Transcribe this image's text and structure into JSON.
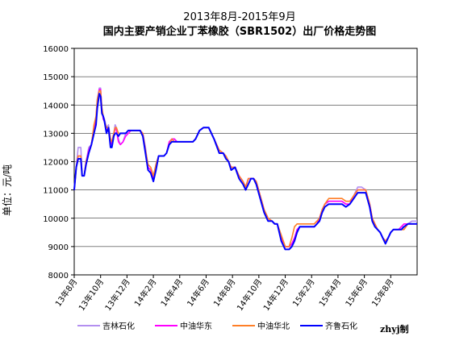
{
  "chart_data": {
    "type": "line",
    "title": "2013年8月-2015年9月",
    "subtitle": "国内主要产销企业丁苯橡胶（SBR1502）出厂价格走势图",
    "ylabel": "单位：元/吨",
    "xlabel": "",
    "ylim": [
      8000,
      16000
    ],
    "yticks": [
      8000,
      9000,
      10000,
      11000,
      12000,
      13000,
      14000,
      15000,
      16000
    ],
    "xlim": [
      0,
      26
    ],
    "xtick_labels": [
      "13年8月",
      "13年10月",
      "13年12月",
      "14年2月",
      "14年4月",
      "14年6月",
      "14年8月",
      "14年10月",
      "14年12月",
      "15年2月",
      "15年4月",
      "15年6月",
      "15年8月"
    ],
    "xtick_positions": [
      0,
      2,
      4,
      6,
      8,
      10,
      12,
      14,
      16,
      18,
      20,
      22,
      24
    ],
    "grid": "horizontal",
    "legend_position": "bottom",
    "credit": "zhyj制",
    "series": [
      {
        "name": "吉林石化",
        "color": "#b38ff0",
        "x": [
          0,
          0.15,
          0.3,
          0.5,
          0.6,
          0.75,
          0.9,
          1.1,
          1.3,
          1.5,
          1.65,
          1.75,
          1.9,
          2.0,
          2.1,
          2.2,
          2.3,
          2.45,
          2.6,
          2.75,
          2.85,
          3.0,
          3.1,
          3.2,
          3.35,
          3.5,
          3.7,
          3.9,
          4.1,
          4.3,
          4.6,
          4.8,
          5.0,
          5.2,
          5.4,
          5.6,
          5.8,
          6.0,
          6.2,
          6.4,
          6.6,
          6.8,
          7.0,
          7.2,
          7.4,
          7.6,
          7.8,
          8.0,
          8.2,
          8.4,
          8.6,
          8.8,
          9.0,
          9.2,
          9.5,
          9.8,
          10.2,
          10.6,
          11.0,
          11.3,
          11.5,
          11.7,
          11.9,
          12.2,
          12.5,
          12.8,
          13.0,
          13.2,
          13.4,
          13.6,
          13.8,
          14.1,
          14.4,
          14.7,
          15.0,
          15.2,
          15.4,
          15.7,
          16.0,
          16.3,
          16.5,
          16.7,
          16.9,
          17.1,
          17.4,
          17.7,
          18.0,
          18.2,
          18.4,
          18.6,
          18.8,
          19.0,
          19.3,
          19.6,
          20.0,
          20.3,
          20.6,
          20.9,
          21.2,
          21.5,
          21.8,
          22.1,
          22.4,
          22.6,
          22.8,
          23.0,
          23.2,
          23.4,
          23.6,
          23.8,
          24.0,
          24.2,
          24.4,
          24.6,
          24.8,
          25.0,
          25.3,
          25.6,
          25.9,
          26.0
        ],
        "values": [
          11000,
          11800,
          12500,
          12500,
          11500,
          11500,
          12000,
          12500,
          12600,
          13200,
          13500,
          14200,
          14600,
          14600,
          13800,
          13600,
          13500,
          13200,
          13300,
          12800,
          12600,
          13000,
          13300,
          13200,
          12800,
          12600,
          12700,
          13000,
          13100,
          13100,
          13100,
          13100,
          13100,
          13000,
          12500,
          11800,
          11700,
          11400,
          11900,
          12200,
          12200,
          12200,
          12300,
          12600,
          12800,
          12800,
          12700,
          12700,
          12700,
          12700,
          12700,
          12700,
          12700,
          12800,
          13100,
          13200,
          13200,
          12800,
          12400,
          12300,
          12200,
          12000,
          11800,
          11800,
          11500,
          11300,
          11100,
          11400,
          11400,
          11400,
          11300,
          10800,
          10300,
          10000,
          9900,
          9800,
          9800,
          9400,
          9000,
          9000,
          9100,
          9300,
          9600,
          9700,
          9700,
          9700,
          9700,
          9700,
          9800,
          10000,
          10300,
          10500,
          10600,
          10600,
          10600,
          10600,
          10500,
          10500,
          10800,
          11100,
          11100,
          11000,
          10500,
          10000,
          9800,
          9600,
          9500,
          9300,
          9200,
          9300,
          9500,
          9600,
          9600,
          9600,
          9700,
          9700,
          9800,
          9900,
          9900,
          9900
        ]
      },
      {
        "name": "中油华东",
        "color": "#ff00ff",
        "x": [
          0,
          0.15,
          0.3,
          0.5,
          0.6,
          0.75,
          0.9,
          1.1,
          1.3,
          1.5,
          1.65,
          1.75,
          1.9,
          2.0,
          2.1,
          2.2,
          2.3,
          2.45,
          2.6,
          2.75,
          2.85,
          3.0,
          3.1,
          3.2,
          3.35,
          3.5,
          3.7,
          3.9,
          4.1,
          4.3,
          4.6,
          4.8,
          5.0,
          5.2,
          5.4,
          5.6,
          5.8,
          6.0,
          6.2,
          6.4,
          6.6,
          6.8,
          7.0,
          7.2,
          7.4,
          7.6,
          7.8,
          8.0,
          8.2,
          8.4,
          8.6,
          8.8,
          9.0,
          9.2,
          9.5,
          9.8,
          10.2,
          10.6,
          11.0,
          11.3,
          11.5,
          11.7,
          11.9,
          12.2,
          12.5,
          12.8,
          13.0,
          13.2,
          13.4,
          13.6,
          13.8,
          14.1,
          14.4,
          14.7,
          15.0,
          15.2,
          15.4,
          15.7,
          16.0,
          16.3,
          16.5,
          16.7,
          16.9,
          17.1,
          17.4,
          17.7,
          18.0,
          18.2,
          18.4,
          18.6,
          18.8,
          19.0,
          19.3,
          19.6,
          20.0,
          20.3,
          20.6,
          20.9,
          21.2,
          21.5,
          21.8,
          22.1,
          22.4,
          22.6,
          22.8,
          23.0,
          23.2,
          23.4,
          23.6,
          23.8,
          24.0,
          24.2,
          24.4,
          24.6,
          24.8,
          25.0,
          25.3,
          25.6,
          25.9,
          26.0
        ],
        "values": [
          11000,
          11800,
          12200,
          12200,
          11500,
          11500,
          12000,
          12400,
          12600,
          13200,
          13500,
          14100,
          14550,
          14550,
          13800,
          13500,
          13400,
          13100,
          13200,
          12700,
          12600,
          12900,
          13200,
          13100,
          12700,
          12600,
          12700,
          12900,
          13000,
          13100,
          13100,
          13100,
          13100,
          13000,
          12400,
          11800,
          11700,
          11400,
          11800,
          12200,
          12200,
          12200,
          12300,
          12700,
          12800,
          12800,
          12700,
          12700,
          12700,
          12700,
          12700,
          12700,
          12700,
          12800,
          13100,
          13200,
          13200,
          12800,
          12400,
          12300,
          12200,
          12000,
          11800,
          11800,
          11500,
          11300,
          11100,
          11400,
          11400,
          11400,
          11300,
          10800,
          10300,
          10000,
          9900,
          9800,
          9800,
          9300,
          9000,
          9000,
          9100,
          9300,
          9600,
          9700,
          9700,
          9700,
          9700,
          9700,
          9800,
          10000,
          10300,
          10500,
          10600,
          10600,
          10600,
          10600,
          10500,
          10500,
          10800,
          11000,
          11000,
          11000,
          10500,
          10000,
          9800,
          9600,
          9500,
          9300,
          9200,
          9300,
          9500,
          9600,
          9600,
          9600,
          9700,
          9800,
          9800,
          9800,
          9800,
          9800
        ]
      },
      {
        "name": "中油华北",
        "color": "#ff7f27",
        "x": [
          0,
          0.15,
          0.3,
          0.5,
          0.6,
          0.75,
          0.9,
          1.1,
          1.3,
          1.5,
          1.65,
          1.75,
          1.9,
          2.0,
          2.1,
          2.2,
          2.3,
          2.45,
          2.6,
          2.75,
          2.85,
          3.0,
          3.1,
          3.2,
          3.35,
          3.5,
          3.7,
          3.9,
          4.1,
          4.3,
          4.6,
          4.8,
          5.0,
          5.2,
          5.4,
          5.6,
          5.8,
          6.0,
          6.2,
          6.4,
          6.6,
          6.8,
          7.0,
          7.2,
          7.4,
          7.6,
          7.8,
          8.0,
          8.2,
          8.4,
          8.6,
          8.8,
          9.0,
          9.2,
          9.5,
          9.8,
          10.2,
          10.6,
          11.0,
          11.3,
          11.5,
          11.7,
          11.9,
          12.2,
          12.5,
          12.8,
          13.0,
          13.2,
          13.4,
          13.6,
          13.8,
          14.1,
          14.4,
          14.7,
          15.0,
          15.2,
          15.4,
          15.7,
          16.0,
          16.3,
          16.5,
          16.7,
          16.9,
          17.1,
          17.4,
          17.7,
          18.0,
          18.2,
          18.4,
          18.6,
          18.8,
          19.0,
          19.3,
          19.6,
          20.0,
          20.3,
          20.6,
          20.9,
          21.2,
          21.5,
          21.8,
          22.1,
          22.4,
          22.6,
          22.8,
          23.0,
          23.2,
          23.4,
          23.6,
          23.8,
          24.0,
          24.2,
          24.4,
          24.6,
          24.8,
          25.0,
          25.3,
          25.6,
          25.9,
          26.0
        ],
        "values": [
          11000,
          11800,
          12200,
          12200,
          11500,
          11500,
          12000,
          12300,
          12600,
          13300,
          13600,
          14200,
          14500,
          14500,
          13900,
          13600,
          13400,
          13200,
          13200,
          12800,
          12700,
          13000,
          13200,
          13200,
          13000,
          13000,
          13000,
          13000,
          13100,
          13100,
          13100,
          13100,
          13100,
          13000,
          12400,
          11900,
          11800,
          11500,
          11900,
          12200,
          12200,
          12200,
          12300,
          12600,
          12800,
          12700,
          12700,
          12700,
          12700,
          12700,
          12700,
          12700,
          12700,
          12800,
          13100,
          13200,
          13200,
          12800,
          12400,
          12300,
          12200,
          12000,
          11800,
          11800,
          11500,
          11300,
          11100,
          11400,
          11400,
          11400,
          11300,
          10800,
          10300,
          10000,
          9900,
          9800,
          9800,
          9400,
          9000,
          9000,
          9300,
          9700,
          9800,
          9800,
          9800,
          9800,
          9800,
          9800,
          9900,
          10000,
          10300,
          10500,
          10700,
          10700,
          10700,
          10700,
          10600,
          10600,
          10800,
          11000,
          11000,
          11000,
          10500,
          10000,
          9800,
          9600,
          9500,
          9300,
          9200,
          9300,
          9500,
          9600,
          9600,
          9600,
          9600,
          9600,
          9800,
          9800,
          9800,
          9800
        ]
      },
      {
        "name": "齐鲁石化",
        "color": "#0000ff",
        "x": [
          0,
          0.15,
          0.3,
          0.5,
          0.6,
          0.75,
          0.9,
          1.1,
          1.3,
          1.5,
          1.65,
          1.75,
          1.9,
          2.0,
          2.1,
          2.2,
          2.3,
          2.45,
          2.6,
          2.75,
          2.85,
          3.0,
          3.1,
          3.2,
          3.35,
          3.5,
          3.7,
          3.9,
          4.1,
          4.3,
          4.6,
          4.8,
          5.0,
          5.2,
          5.4,
          5.6,
          5.8,
          6.0,
          6.2,
          6.4,
          6.6,
          6.8,
          7.0,
          7.2,
          7.4,
          7.6,
          7.8,
          8.0,
          8.2,
          8.4,
          8.6,
          8.8,
          9.0,
          9.2,
          9.5,
          9.8,
          10.2,
          10.6,
          11.0,
          11.3,
          11.5,
          11.7,
          11.9,
          12.2,
          12.5,
          12.8,
          13.0,
          13.2,
          13.4,
          13.6,
          13.8,
          14.1,
          14.4,
          14.7,
          15.0,
          15.2,
          15.4,
          15.7,
          16.0,
          16.3,
          16.5,
          16.7,
          16.9,
          17.1,
          17.4,
          17.7,
          18.0,
          18.2,
          18.4,
          18.6,
          18.8,
          19.0,
          19.3,
          19.6,
          20.0,
          20.3,
          20.6,
          20.9,
          21.2,
          21.5,
          21.8,
          22.1,
          22.4,
          22.6,
          22.8,
          23.0,
          23.2,
          23.4,
          23.6,
          23.8,
          24.0,
          24.2,
          24.4,
          24.6,
          24.8,
          25.0,
          25.3,
          25.6,
          25.9,
          26.0
        ],
        "values": [
          11000,
          11800,
          12100,
          12100,
          11500,
          11500,
          11900,
          12300,
          12600,
          13000,
          13300,
          13900,
          14400,
          14300,
          13700,
          13600,
          13400,
          13000,
          13200,
          12500,
          12500,
          12900,
          13000,
          13000,
          12900,
          13000,
          13000,
          13000,
          13100,
          13100,
          13100,
          13100,
          13100,
          12900,
          12300,
          11700,
          11600,
          11300,
          11700,
          12200,
          12200,
          12200,
          12300,
          12600,
          12700,
          12700,
          12700,
          12700,
          12700,
          12700,
          12700,
          12700,
          12700,
          12800,
          13100,
          13200,
          13200,
          12800,
          12300,
          12300,
          12100,
          12000,
          11700,
          11800,
          11400,
          11200,
          11000,
          11200,
          11400,
          11400,
          11200,
          10700,
          10200,
          9900,
          9900,
          9800,
          9800,
          9200,
          8900,
          8900,
          9000,
          9200,
          9500,
          9700,
          9700,
          9700,
          9700,
          9700,
          9800,
          9900,
          10200,
          10400,
          10500,
          10500,
          10500,
          10500,
          10400,
          10500,
          10700,
          10900,
          10900,
          10900,
          10400,
          9900,
          9700,
          9600,
          9500,
          9300,
          9100,
          9300,
          9500,
          9600,
          9600,
          9600,
          9600,
          9700,
          9800,
          9800,
          9800,
          9800
        ]
      }
    ]
  }
}
